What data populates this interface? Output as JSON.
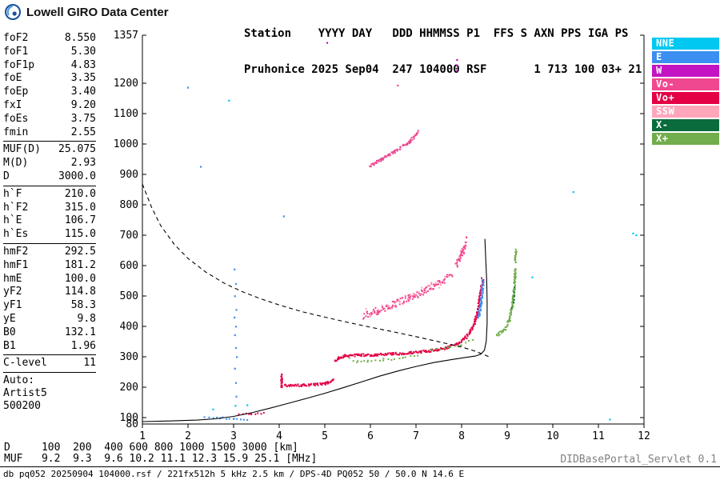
{
  "header": {
    "brand": "Lowell GIRO Data Center",
    "info_line1": "Station    YYYY DAY   DDD HHMMSS P1  FFS S AXN PPS IGA PS",
    "info_line2": "Pruhonice 2025 Sep04  247 104000 RSF       1 713 100 03+ 21"
  },
  "params": {
    "groups": [
      {
        "rows": [
          {
            "label": "foF2",
            "value": "8.550"
          },
          {
            "label": "foF1",
            "value": "5.30"
          },
          {
            "label": "foF1p",
            "value": "4.83"
          },
          {
            "label": "foE",
            "value": "3.35"
          },
          {
            "label": "foEp",
            "value": "3.40"
          },
          {
            "label": "fxI",
            "value": "9.20"
          },
          {
            "label": "foEs",
            "value": "3.75"
          },
          {
            "label": "fmin",
            "value": "2.55"
          }
        ]
      },
      {
        "rows": [
          {
            "label": "MUF(D)",
            "value": "25.075"
          },
          {
            "label": "M(D)",
            "value": "2.93"
          },
          {
            "label": "D",
            "value": "3000.0"
          }
        ]
      },
      {
        "rows": [
          {
            "label": "h`F",
            "value": "210.0"
          },
          {
            "label": "h`F2",
            "value": "315.0"
          },
          {
            "label": "h`E",
            "value": "106.7"
          },
          {
            "label": "h`Es",
            "value": "115.0"
          }
        ]
      },
      {
        "rows": [
          {
            "label": "hmF2",
            "value": "292.5"
          },
          {
            "label": "hmF1",
            "value": "181.2"
          },
          {
            "label": "hmE",
            "value": "100.0"
          },
          {
            "label": "yF2",
            "value": "114.8"
          },
          {
            "label": "yF1",
            "value": "58.3"
          },
          {
            "label": "yE",
            "value": "9.8"
          },
          {
            "label": "B0",
            "value": "132.1"
          },
          {
            "label": "B1",
            "value": "1.96"
          }
        ]
      },
      {
        "rows": [
          {
            "label": "C-level",
            "value": "11"
          }
        ]
      }
    ],
    "auto_block": [
      "Auto:",
      "Artist5",
      "500200"
    ]
  },
  "legend": {
    "items": [
      "NNE",
      "E",
      "W",
      "Vo-",
      "Vo+",
      "SSW",
      "X-",
      "X+"
    ]
  },
  "footer": {
    "d_row": "D     100  200  400 600 800 1000 1500 3000 [km]",
    "muf_row": "MUF   9.2  9.3  9.6 10.2 11.1 12.3 15.9 25.1 [MHz]",
    "servlet": "DIDBasePortal_Servlet 0.1",
    "status": "db pq052 20250904 104000.rsf / 221fx512h 5 kHz 2.5 km / DPS-4D PQ052 50 / 50.0 N 14.6 E"
  },
  "chart_data": {
    "type": "scatter",
    "title": "",
    "xlabel": "[MHz]",
    "ylabel": "[km]",
    "xlim": [
      1,
      12
    ],
    "ylim": [
      80,
      1357
    ],
    "x_ticks": [
      1,
      2,
      3,
      4,
      5,
      6,
      7,
      8,
      9,
      10,
      11,
      12
    ],
    "y_ticks": [
      80,
      100,
      200,
      300,
      400,
      500,
      600,
      700,
      800,
      900,
      1000,
      1100,
      1200,
      1357
    ],
    "grid": false,
    "legend_position": "right",
    "palette": {
      "NNE": "#00c8f0",
      "E": "#3c8ef0",
      "W": "#c214c2",
      "Vo-": "#f04890",
      "Vo+": "#e40045",
      "SSW": "#ffa6ba",
      "X-": "#0a6b3c",
      "X+": "#71ad4d"
    },
    "muf_table": {
      "d_km": [
        100,
        200,
        400,
        600,
        800,
        1000,
        1500,
        3000
      ],
      "muf_mhz": [
        9.2,
        9.3,
        9.6,
        10.2,
        11.1,
        12.3,
        15.9,
        25.1
      ]
    },
    "series": [
      {
        "name": "scattered-noise",
        "type": "points",
        "points": [
          [
            2.0,
            1185,
            "E"
          ],
          [
            2.28,
            925,
            "E"
          ],
          [
            2.9,
            1142,
            "NNE"
          ],
          [
            3.02,
            588,
            "E"
          ],
          [
            3.05,
            540,
            "E"
          ],
          [
            3.03,
            500,
            "E"
          ],
          [
            3.06,
            455,
            "E"
          ],
          [
            3.02,
            430,
            "E"
          ],
          [
            3.05,
            400,
            "E"
          ],
          [
            3.03,
            372,
            "E"
          ],
          [
            3.05,
            330,
            "E"
          ],
          [
            3.07,
            300,
            "E"
          ],
          [
            3.03,
            262,
            "E"
          ],
          [
            3.05,
            215,
            "E"
          ],
          [
            3.06,
            170,
            "E"
          ],
          [
            3.04,
            140,
            "NNE"
          ],
          [
            3.3,
            142,
            "NNE"
          ],
          [
            2.55,
            128,
            "NNE"
          ],
          [
            4.1,
            762,
            "E"
          ],
          [
            5.05,
            1332,
            "W"
          ],
          [
            7.9,
            1240,
            "W"
          ],
          [
            7.9,
            1258,
            "W"
          ],
          [
            7.9,
            1276,
            "W"
          ],
          [
            6.6,
            1192,
            "Vo-"
          ],
          [
            9.55,
            562,
            "NNE"
          ],
          [
            10.45,
            842,
            "NNE"
          ],
          [
            11.76,
            706,
            "NNE"
          ],
          [
            11.83,
            700,
            "NNE"
          ],
          [
            11.25,
            95,
            "NNE"
          ]
        ]
      },
      {
        "name": "es-trace-blue",
        "type": "dots",
        "color": "E",
        "spread": 3,
        "density": "sparse",
        "segments": [
          [
            [
              2.38,
              103
            ],
            [
              2.7,
              100
            ],
            [
              3.0,
              97
            ],
            [
              3.3,
              95
            ]
          ]
        ]
      },
      {
        "name": "es-trace-red",
        "type": "dots",
        "color": "Vo+",
        "spread": 2,
        "density": "sparse",
        "segments": [
          [
            [
              3.12,
              112
            ],
            [
              3.4,
              113
            ],
            [
              3.68,
              115
            ]
          ]
        ]
      },
      {
        "name": "f1-start-cluster",
        "type": "dots",
        "color": "Vo+",
        "spread": 4,
        "density": "dense",
        "segments": [
          [
            [
              4.04,
              198
            ],
            [
              4.06,
              242
            ]
          ]
        ]
      },
      {
        "name": "f-trace-ordinary",
        "type": "dots",
        "color": "Vo+",
        "spread": 4,
        "density": "dense",
        "segments": [
          [
            [
              4.08,
              206
            ],
            [
              4.5,
              207
            ],
            [
              5.0,
              212
            ],
            [
              5.18,
              224
            ]
          ],
          [
            [
              5.24,
              288
            ],
            [
              5.32,
              298
            ],
            [
              5.45,
              304
            ],
            [
              5.75,
              306
            ],
            [
              6.1,
              307
            ],
            [
              6.5,
              310
            ],
            [
              6.9,
              314
            ],
            [
              7.2,
              318
            ],
            [
              7.45,
              323
            ],
            [
              7.7,
              331
            ],
            [
              7.9,
              342
            ],
            [
              8.05,
              357
            ],
            [
              8.18,
              380
            ],
            [
              8.28,
              412
            ],
            [
              8.35,
              448
            ],
            [
              8.4,
              490
            ],
            [
              8.44,
              530
            ],
            [
              8.46,
              556
            ]
          ]
        ]
      },
      {
        "name": "x-trace-flat",
        "type": "dots",
        "color": "X+",
        "spread": 4,
        "density": "sparse",
        "segments": [
          [
            [
              5.55,
              294
            ],
            [
              5.72,
              284
            ],
            [
              5.95,
              286
            ],
            [
              6.3,
              291
            ],
            [
              6.7,
              297
            ],
            [
              7.05,
              303
            ]
          ],
          [
            [
              7.3,
              321
            ],
            [
              7.7,
              330
            ],
            [
              8.0,
              341
            ],
            [
              8.25,
              354
            ]
          ]
        ]
      },
      {
        "name": "x-trace-rise",
        "type": "dots",
        "color": "X+",
        "spread": 4,
        "density": "dense",
        "segments": [
          [
            [
              8.78,
              370
            ],
            [
              8.95,
              392
            ],
            [
              9.05,
              422
            ],
            [
              9.1,
              456
            ],
            [
              9.14,
              500
            ],
            [
              9.16,
              545
            ],
            [
              9.18,
              588
            ]
          ],
          [
            [
              9.17,
              612
            ],
            [
              9.19,
              650
            ]
          ]
        ]
      },
      {
        "name": "x-trace-dark",
        "type": "dots",
        "color": "X-",
        "spread": 5,
        "density": "sparse",
        "segments": [
          [
            [
              9.12,
              462
            ],
            [
              9.15,
              525
            ]
          ]
        ]
      },
      {
        "name": "o-rise-blue",
        "type": "dots",
        "color": "E",
        "spread": 5,
        "density": "dense",
        "segments": [
          [
            [
              8.38,
              432
            ],
            [
              8.42,
              472
            ],
            [
              8.45,
              512
            ],
            [
              8.47,
              548
            ]
          ]
        ]
      },
      {
        "name": "second-hop-main",
        "type": "dots",
        "color": "Vo-",
        "spread": 12,
        "density": "dense",
        "segments": [
          [
            [
              5.85,
              436
            ],
            [
              6.15,
              452
            ],
            [
              6.5,
              472
            ],
            [
              6.85,
              494
            ],
            [
              7.2,
              518
            ],
            [
              7.5,
              542
            ],
            [
              7.78,
              568
            ]
          ],
          [
            [
              7.88,
              598
            ],
            [
              8.02,
              642
            ],
            [
              8.1,
              682
            ]
          ]
        ]
      },
      {
        "name": "second-hop-light",
        "type": "dots",
        "color": "SSW",
        "spread": 16,
        "density": "sparse",
        "segments": [
          [
            [
              5.9,
              445
            ],
            [
              6.4,
              470
            ],
            [
              6.9,
              500
            ],
            [
              7.35,
              530
            ],
            [
              7.7,
              562
            ]
          ]
        ]
      },
      {
        "name": "second-reflection-arc",
        "type": "dots",
        "color": "Vo-",
        "spread": 5,
        "density": "dense",
        "segments": [
          [
            [
              5.98,
              928
            ],
            [
              6.25,
              950
            ],
            [
              6.55,
              976
            ],
            [
              6.85,
              1006
            ],
            [
              7.05,
              1040
            ]
          ]
        ]
      },
      {
        "name": "muf-transmission-curve",
        "type": "line",
        "dash": true,
        "color": "#000000",
        "points": [
          [
            1.0,
            868
          ],
          [
            1.2,
            792
          ],
          [
            1.4,
            732
          ],
          [
            1.7,
            670
          ],
          [
            2.0,
            624
          ],
          [
            2.4,
            578
          ],
          [
            2.8,
            542
          ],
          [
            3.2,
            514
          ],
          [
            3.6,
            491
          ],
          [
            4.0,
            471
          ],
          [
            4.5,
            449
          ],
          [
            5.0,
            431
          ],
          [
            5.5,
            414
          ],
          [
            6.0,
            398
          ],
          [
            6.5,
            383
          ],
          [
            7.0,
            367
          ],
          [
            7.5,
            350
          ],
          [
            8.0,
            333
          ],
          [
            8.3,
            319
          ],
          [
            8.6,
            301
          ]
        ]
      },
      {
        "name": "true-height-profile",
        "type": "line",
        "dash": false,
        "color": "#000000",
        "points": [
          [
            1.0,
            88
          ],
          [
            1.6,
            90
          ],
          [
            2.2,
            93
          ],
          [
            2.6,
            97
          ],
          [
            3.0,
            105
          ],
          [
            3.4,
            117
          ],
          [
            3.8,
            132
          ],
          [
            4.2,
            148
          ],
          [
            4.6,
            164
          ],
          [
            5.0,
            181
          ],
          [
            5.4,
            199
          ],
          [
            5.8,
            218
          ],
          [
            6.2,
            237
          ],
          [
            6.6,
            254
          ],
          [
            7.0,
            269
          ],
          [
            7.4,
            282
          ],
          [
            7.8,
            292
          ],
          [
            8.1,
            299
          ],
          [
            8.3,
            303
          ],
          [
            8.42,
            309
          ],
          [
            8.5,
            322
          ],
          [
            8.54,
            352
          ],
          [
            8.56,
            410
          ],
          [
            8.56,
            480
          ],
          [
            8.55,
            550
          ],
          [
            8.53,
            620
          ],
          [
            8.51,
            688
          ]
        ]
      }
    ]
  }
}
